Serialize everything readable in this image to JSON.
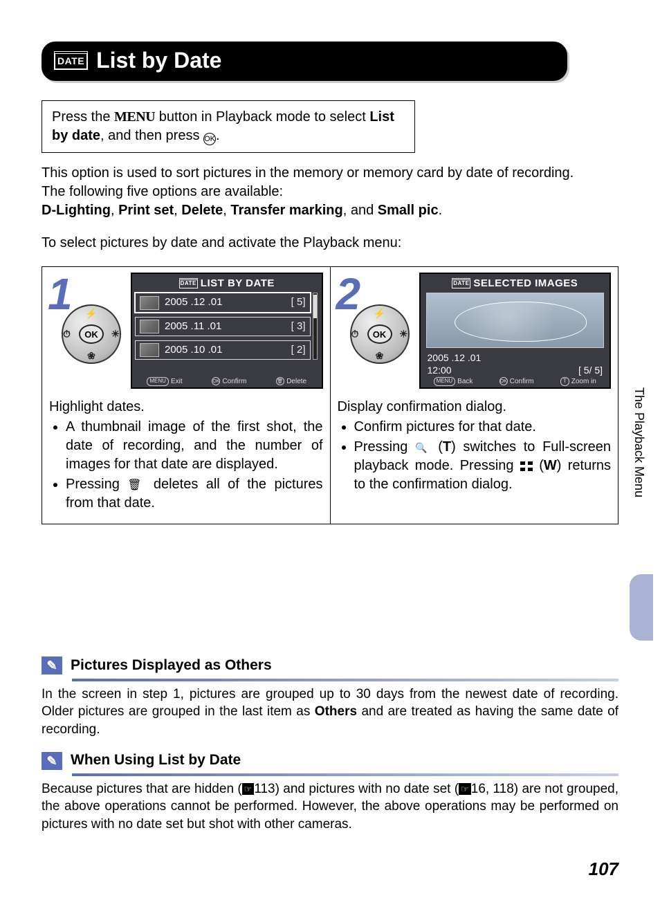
{
  "page_number": "107",
  "side_tab": "The Playback Menu",
  "title": "List by Date",
  "instruction_box": {
    "pre": "Press the ",
    "menu_word": "MENU",
    "mid": " button in Playback mode to select ",
    "bold": "List by date",
    "post": ", and then press ",
    "ok": "⊛",
    "end": "."
  },
  "intro": {
    "line1": "This option is used to sort pictures in the memory or memory card by date of recording.",
    "line2": "The following five options are available:",
    "opts_pre": "",
    "options": [
      "D-Lighting",
      "Print set",
      "Delete",
      "Transfer marking",
      "Small pic"
    ],
    "post": "."
  },
  "lead": "To select pictures by date and activate the Playback menu:",
  "step1": {
    "num": "1",
    "lcd_title": "LIST BY DATE",
    "rows": [
      {
        "date": "2005 .12 .01",
        "count": "[   5]"
      },
      {
        "date": "2005 .11 .01",
        "count": "[   3]"
      },
      {
        "date": "2005 .10 .01",
        "count": "[   2]"
      }
    ],
    "footer": {
      "a": "Exit",
      "b": "Confirm",
      "c": "Delete",
      "a_btn": "MENU",
      "b_btn": "OK",
      "c_btn": "🗑"
    },
    "lead": "Highlight dates.",
    "bullets": [
      "A thumbnail image of the first shot, the date of recording, and the number of images for that date are displayed.",
      "Pressing 🗑 deletes all of the pictures from that date."
    ]
  },
  "step2": {
    "num": "2",
    "lcd_title": "SELECTED IMAGES",
    "info_date": "2005 .12 .01",
    "info_time": "12:00",
    "info_idx": "[          5/     5]",
    "footer": {
      "a": "Back",
      "b": "Confirm",
      "c": "Zoom in",
      "a_btn": "MENU",
      "b_btn": "OK",
      "c_btn": "T"
    },
    "lead": "Display confirmation dialog.",
    "bullets": [
      "Confirm pictures for that date.",
      "Pressing 🔍 (T) switches to Full-screen playback mode. Pressing ▦ (W) returns to the confirmation dialog."
    ]
  },
  "note1": {
    "title": "Pictures Displayed as Others",
    "body_pre": "In the screen in step 1, pictures are grouped up to 30 days from the newest date of recording. Older pictures are grouped in the last item as ",
    "bold": "Others",
    "body_post": " and are treated as having the same date of recording."
  },
  "note2": {
    "title": "When Using List by Date",
    "body_a": "Because pictures that are hidden (",
    "ref1": "113",
    "body_b": ") and pictures with no date set (",
    "ref2": "16, 118",
    "body_c": ") are not grouped, the above operations cannot be performed. However, the above operations may be performed on pictures with no date set but shot with other cameras."
  },
  "colors": {
    "accent": "#5a6db8",
    "lcd_bg": "#3a3a42",
    "side_pill": "#aab3d4"
  }
}
